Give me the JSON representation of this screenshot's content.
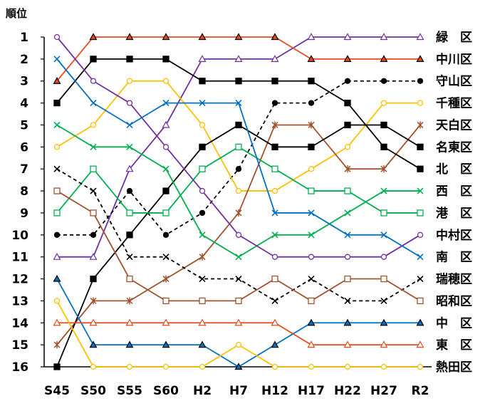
{
  "chart_data": {
    "type": "line",
    "title": "",
    "ylabel": "順位",
    "xlabel": "",
    "x": [
      "S45",
      "S50",
      "S55",
      "S60",
      "H2",
      "H7",
      "H12",
      "H17",
      "H22",
      "H27",
      "R2"
    ],
    "ylim": [
      1,
      16
    ],
    "y_ticks": [
      "1",
      "2",
      "3",
      "4",
      "5",
      "6",
      "7",
      "8",
      "9",
      "10",
      "11",
      "12",
      "13",
      "14",
      "15",
      "16"
    ],
    "y_inverted": true,
    "grid": false,
    "legend": "right-end labels",
    "series": [
      {
        "name": "緑　区",
        "color": "#7030A0",
        "marker": "triangle-open",
        "dashed": false,
        "values": [
          11,
          11,
          7,
          5,
          2,
          2,
          2,
          1,
          1,
          1,
          1
        ]
      },
      {
        "name": "中川区",
        "color": "#E8491D",
        "marker": "triangle-filled",
        "dashed": false,
        "values": [
          3,
          1,
          1,
          1,
          1,
          1,
          1,
          2,
          2,
          2,
          2
        ]
      },
      {
        "name": "守山区",
        "color": "#000000",
        "marker": "circle-filled",
        "dashed": true,
        "values": [
          10,
          10,
          8,
          10,
          9,
          7,
          4,
          4,
          3,
          3,
          3
        ]
      },
      {
        "name": "千種区",
        "color": "#FFC000",
        "marker": "circle-open",
        "dashed": false,
        "values": [
          6,
          5,
          3,
          3,
          5,
          8,
          8,
          7,
          6,
          4,
          4
        ]
      },
      {
        "name": "天白区",
        "color": "#A0522D",
        "marker": "asterisk",
        "dashed": false,
        "values": [
          15,
          13,
          13,
          12,
          11,
          9,
          5,
          5,
          7,
          7,
          5
        ]
      },
      {
        "name": "名東区",
        "color": "#000000",
        "marker": "square-filled",
        "dashed": false,
        "values": [
          16,
          12,
          10,
          8,
          6,
          5,
          6,
          6,
          5,
          5,
          6
        ]
      },
      {
        "name": "北　区",
        "color": "#000000",
        "marker": "square-filled",
        "dashed": false,
        "values": [
          4,
          2,
          2,
          2,
          3,
          3,
          3,
          3,
          4,
          6,
          7
        ]
      },
      {
        "name": "西　区",
        "color": "#00B050",
        "marker": "x",
        "dashed": false,
        "values": [
          5,
          6,
          6,
          7,
          10,
          11,
          10,
          10,
          9,
          8,
          8
        ]
      },
      {
        "name": "港　区",
        "color": "#00B050",
        "marker": "square-open",
        "dashed": false,
        "values": [
          9,
          7,
          9,
          9,
          7,
          6,
          7,
          8,
          8,
          9,
          9
        ]
      },
      {
        "name": "中村区",
        "color": "#7030A0",
        "marker": "circle-open",
        "dashed": false,
        "values": [
          1,
          3,
          4,
          6,
          8,
          10,
          11,
          11,
          11,
          11,
          10
        ]
      },
      {
        "name": "南　区",
        "color": "#0070C0",
        "marker": "x",
        "dashed": false,
        "values": [
          2,
          4,
          5,
          4,
          4,
          4,
          9,
          9,
          10,
          10,
          11
        ]
      },
      {
        "name": "瑞穂区",
        "color": "#000000",
        "marker": "x",
        "dashed": true,
        "values": [
          7,
          8,
          11,
          11,
          12,
          12,
          13,
          12,
          13,
          13,
          12
        ]
      },
      {
        "name": "昭和区",
        "color": "#A0522D",
        "marker": "square-open",
        "dashed": false,
        "values": [
          8,
          9,
          12,
          13,
          13,
          13,
          12,
          13,
          12,
          12,
          13
        ]
      },
      {
        "name": "中　区",
        "color": "#0070C0",
        "marker": "triangle-filled",
        "dashed": false,
        "values": [
          12,
          15,
          15,
          15,
          15,
          16,
          15,
          14,
          14,
          14,
          14
        ]
      },
      {
        "name": "東　区",
        "color": "#E8491D",
        "marker": "triangle-open",
        "dashed": false,
        "values": [
          14,
          14,
          14,
          14,
          14,
          14,
          14,
          15,
          15,
          15,
          15
        ]
      },
      {
        "name": "熱田区",
        "color": "#FFC000",
        "marker": "circle-open",
        "dashed": false,
        "values": [
          13,
          16,
          16,
          16,
          16,
          15,
          16,
          16,
          16,
          16,
          16
        ]
      }
    ]
  }
}
